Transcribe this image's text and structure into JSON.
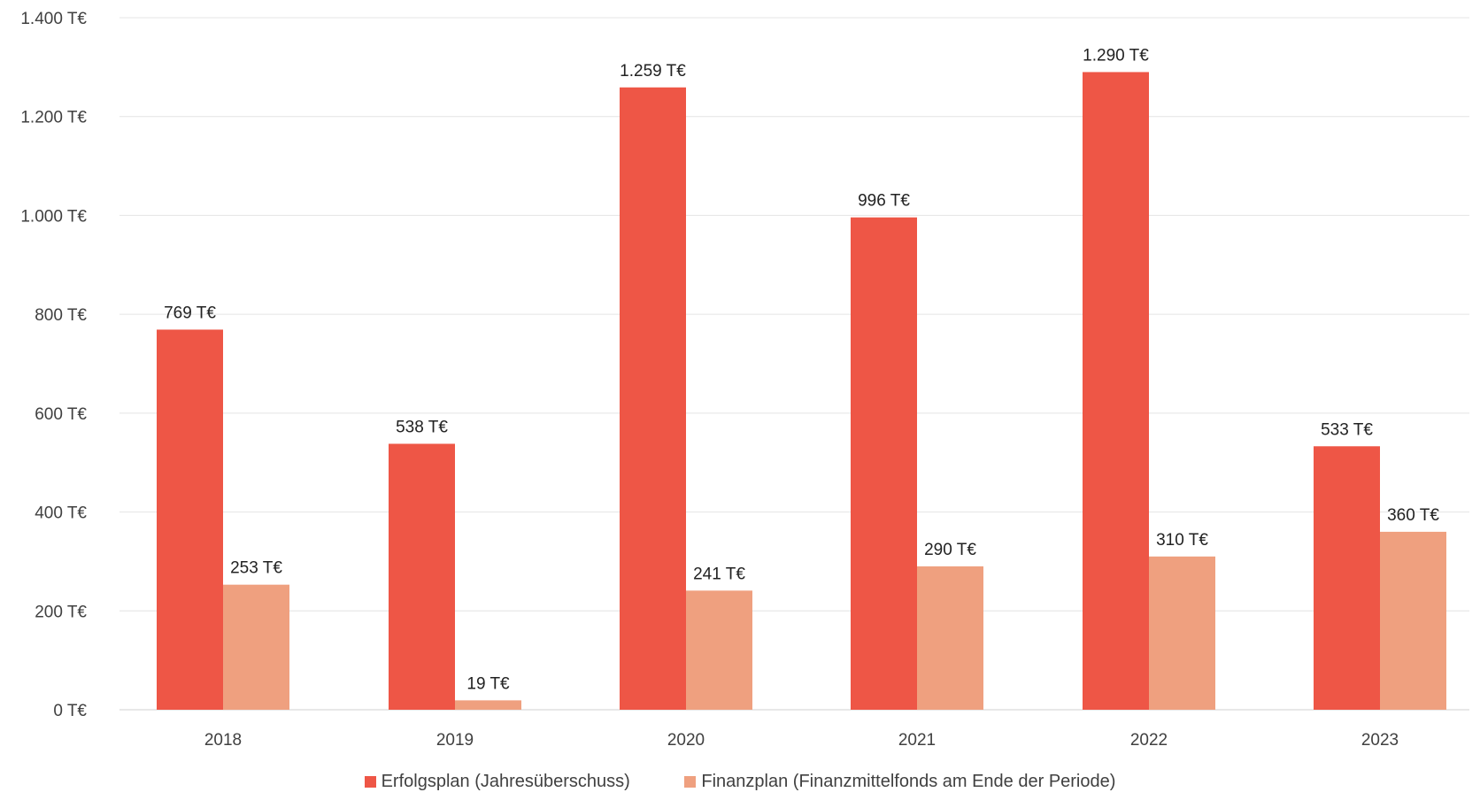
{
  "chart_data": {
    "type": "bar",
    "categories": [
      "2018",
      "2019",
      "2020",
      "2021",
      "2022",
      "2023"
    ],
    "series": [
      {
        "name": "Erfolgsplan (Jahresüberschuss)",
        "color": "#EE5646",
        "values": [
          769,
          538,
          1259,
          996,
          1290,
          533
        ],
        "labels": [
          "769 T€",
          "538 T€",
          "1.259 T€",
          "996 T€",
          "1.290 T€",
          "533 T€"
        ]
      },
      {
        "name": "Finanzplan (Finanzmittelfonds am Ende der Periode)",
        "color": "#EFA07F",
        "values": [
          253,
          19,
          241,
          290,
          310,
          360
        ],
        "labels": [
          "253 T€",
          "19 T€",
          "241 T€",
          "290 T€",
          "310 T€",
          "360 T€"
        ]
      }
    ],
    "y_ticks": [
      0,
      200,
      400,
      600,
      800,
      1000,
      1200,
      1400
    ],
    "y_tick_labels": [
      "0 T€",
      "200 T€",
      "400 T€",
      "600 T€",
      "800 T€",
      "1.000 T€",
      "1.200 T€",
      "1.400 T€"
    ],
    "ylim": [
      0,
      1400
    ],
    "grid": true,
    "legend_position": "bottom"
  }
}
